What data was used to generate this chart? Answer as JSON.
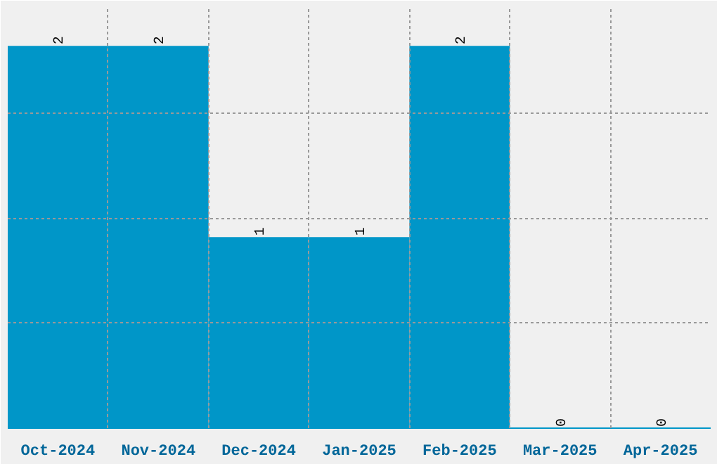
{
  "chart_data": {
    "type": "bar",
    "categories": [
      "Oct-2024",
      "Nov-2024",
      "Dec-2024",
      "Jan-2025",
      "Feb-2025",
      "Mar-2025",
      "Apr-2025"
    ],
    "values": [
      2,
      2,
      1,
      1,
      2,
      0,
      0
    ],
    "color": "#0096c8",
    "ylim": [
      0,
      2.2
    ],
    "yticks": [
      {
        "value": 0.55,
        "label": null
      },
      {
        "value": 1.1,
        "label": null
      },
      {
        "value": 1.65,
        "label": null
      },
      {
        "value": 2.2,
        "label": null
      }
    ],
    "grid": true,
    "tick_labels": "x",
    "data_labels": true
  }
}
